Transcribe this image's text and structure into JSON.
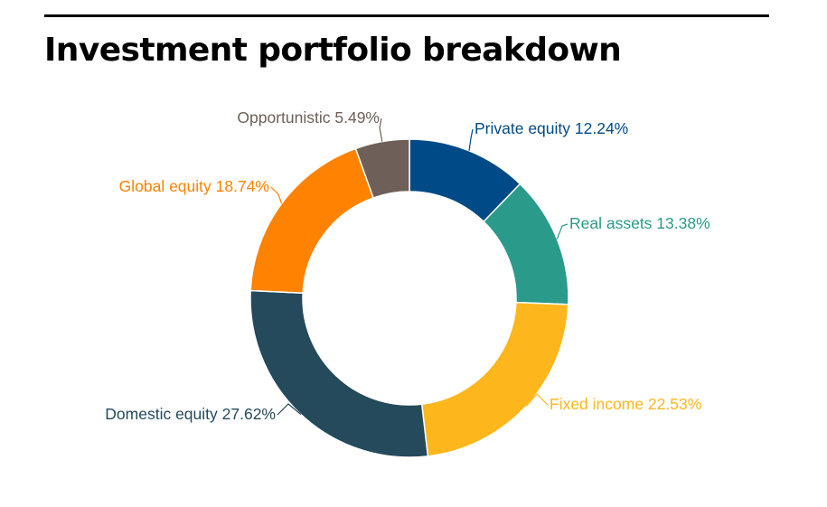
{
  "page": {
    "title": "Investment portfolio breakdown"
  },
  "chart_data": {
    "type": "pie",
    "donut": true,
    "unit": "%",
    "categories": [
      "Private equity",
      "Real assets",
      "Fixed income",
      "Domestic equity",
      "Global equity",
      "Opportunistic"
    ],
    "values": [
      12.24,
      13.38,
      22.53,
      27.62,
      18.74,
      5.49
    ],
    "labels": [
      "Private equity 12.24%",
      "Real assets 13.38%",
      "Fixed income 22.53%",
      "Domestic equity 27.62%",
      "Global equity 18.74%",
      "Opportunistic 5.49%"
    ],
    "colors": [
      "#004a87",
      "#2a9a8a",
      "#fdb71c",
      "#244a5b",
      "#ff8200",
      "#6e6058"
    ],
    "label_colors": [
      "#004a87",
      "#2a9a8a",
      "#fdb71c",
      "#244a5b",
      "#ff8200",
      "#6e6058"
    ],
    "start_angle": "12 o'clock",
    "direction": "clockwise",
    "legend": "none"
  }
}
